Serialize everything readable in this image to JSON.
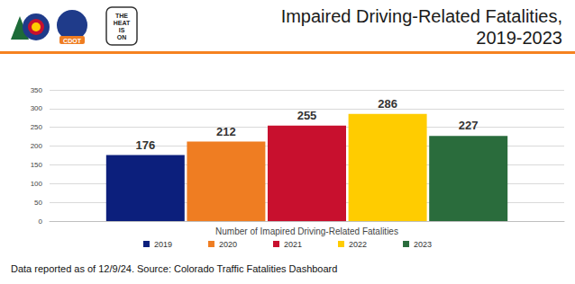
{
  "header": {
    "logos": [
      "CDOT",
      "THE HEAT IS ON"
    ]
  },
  "chart_data": {
    "type": "bar",
    "title": "Impaired Driving-Related Fatalities,\n2019-2023",
    "categories": [
      "Number of Imapired Driving-Related Fatalities"
    ],
    "series": [
      {
        "name": "2019",
        "color": "#0c1f7c",
        "values": [
          176
        ]
      },
      {
        "name": "2020",
        "color": "#ef7d22",
        "values": [
          212
        ]
      },
      {
        "name": "2021",
        "color": "#c8102e",
        "values": [
          255
        ]
      },
      {
        "name": "2022",
        "color": "#ffcc00",
        "values": [
          286
        ]
      },
      {
        "name": "2023",
        "color": "#2a6c3c",
        "values": [
          227
        ]
      }
    ],
    "ylim": [
      0,
      350
    ],
    "yticks": [
      0,
      50,
      100,
      150,
      200,
      250,
      300,
      350
    ],
    "grid": true,
    "legend": "bottom",
    "data_labels": true
  },
  "footer": {
    "note": "Data reported as of 12/9/24. Source: Colorado Traffic Fatalities Dashboard"
  }
}
